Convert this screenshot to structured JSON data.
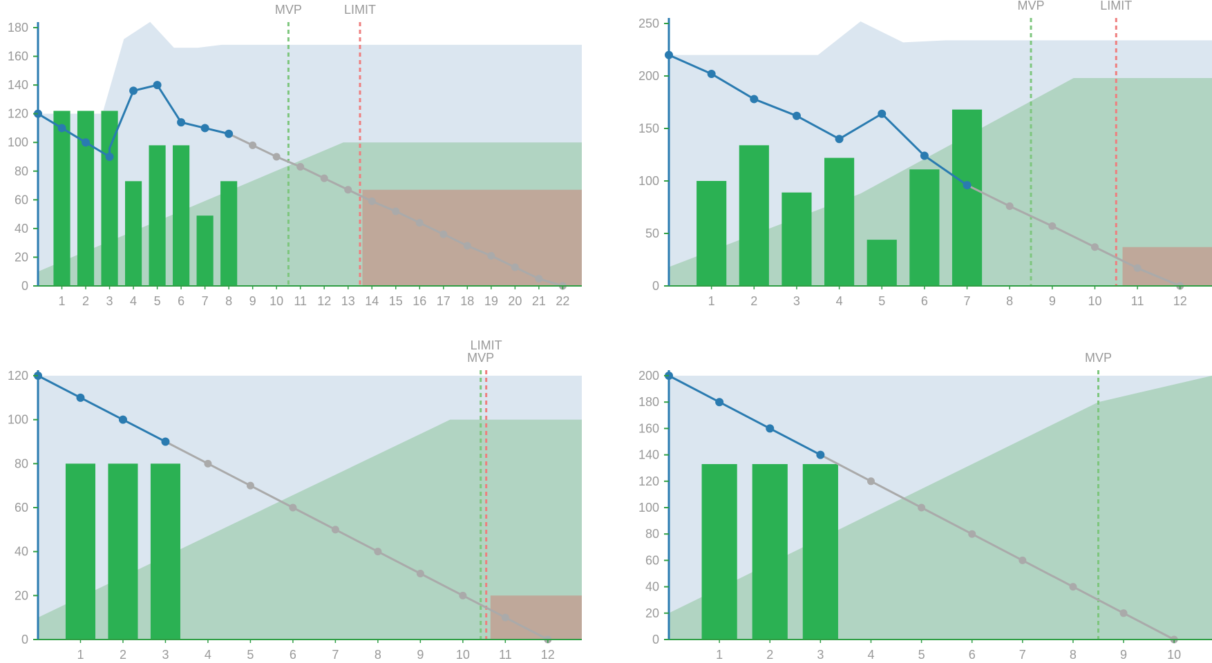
{
  "colors": {
    "scope": "#dbe6f0",
    "done_area": "#b1d4c2",
    "over_limit": "#bfa89a",
    "bars": "#2bb153",
    "actual_line": "#2a7bb0",
    "projection": "#aaaaaa",
    "mvp": "#7ec67e",
    "limit": "#ee7f7f",
    "axis_x": "#2f9e44",
    "axis_y": "#2a7bb0"
  },
  "chart_data": [
    {
      "type": "bar",
      "ylim": [
        0,
        180
      ],
      "yticks": [
        0,
        20,
        40,
        60,
        80,
        100,
        120,
        140,
        160,
        180
      ],
      "xlim": [
        0,
        22.8
      ],
      "xticks": [
        1,
        2,
        3,
        4,
        5,
        6,
        7,
        8,
        9,
        10,
        11,
        12,
        13,
        14,
        15,
        16,
        17,
        18,
        19,
        20,
        21,
        22
      ],
      "bars": [
        {
          "x": 1,
          "value": 122
        },
        {
          "x": 2,
          "value": 122
        },
        {
          "x": 3,
          "value": 122
        },
        {
          "x": 4,
          "value": 73
        },
        {
          "x": 5,
          "value": 98
        },
        {
          "x": 6,
          "value": 98
        },
        {
          "x": 7,
          "value": 49
        },
        {
          "x": 8,
          "value": 73
        }
      ],
      "bar_width": 0.7,
      "actual": [
        [
          0,
          120
        ],
        [
          1,
          110
        ],
        [
          2,
          100
        ],
        [
          3,
          90
        ],
        [
          3,
          96
        ],
        [
          4,
          136
        ],
        [
          5,
          140
        ],
        [
          6,
          114
        ],
        [
          7,
          110
        ],
        [
          8,
          106
        ]
      ],
      "actual_points": [
        [
          0,
          120
        ],
        [
          1,
          110
        ],
        [
          2,
          100
        ],
        [
          3,
          90
        ],
        [
          4,
          136
        ],
        [
          5,
          140
        ],
        [
          6,
          114
        ],
        [
          7,
          110
        ],
        [
          8,
          106
        ]
      ],
      "projection": [
        [
          8,
          106
        ],
        [
          9,
          98
        ],
        [
          10,
          90
        ],
        [
          11,
          83
        ],
        [
          12,
          75
        ],
        [
          13,
          67
        ],
        [
          14,
          59
        ],
        [
          15,
          52
        ],
        [
          16,
          44
        ],
        [
          17,
          36
        ],
        [
          18,
          28
        ],
        [
          19,
          21
        ],
        [
          20,
          13
        ],
        [
          21,
          5
        ],
        [
          22,
          0
        ]
      ],
      "scope_area": [
        [
          0,
          120
        ],
        [
          2.7,
          120
        ],
        [
          3.6,
          172
        ],
        [
          4.7,
          184
        ],
        [
          5.7,
          166
        ],
        [
          6.7,
          166
        ],
        [
          7.7,
          168
        ],
        [
          22.8,
          168
        ]
      ],
      "done_area": [
        [
          0,
          10
        ],
        [
          12.8,
          100
        ],
        [
          22.8,
          100
        ]
      ],
      "limit_region": {
        "x_start": 13.6,
        "x_end": 22.8,
        "y": 67
      },
      "markers": [
        {
          "label": "MVP",
          "x": 10.5,
          "kind": "mvp",
          "label_row": 0
        },
        {
          "label": "LIMIT",
          "x": 13.5,
          "kind": "limit",
          "label_row": 0
        }
      ]
    },
    {
      "type": "bar",
      "ylim": [
        0,
        250
      ],
      "yticks": [
        0,
        50,
        100,
        150,
        200,
        250
      ],
      "xlim": [
        0,
        12.75
      ],
      "xticks": [
        1,
        2,
        3,
        4,
        5,
        6,
        7,
        8,
        9,
        10,
        11,
        12
      ],
      "bars": [
        {
          "x": 1,
          "value": 100
        },
        {
          "x": 2,
          "value": 134
        },
        {
          "x": 3,
          "value": 89
        },
        {
          "x": 4,
          "value": 122
        },
        {
          "x": 5,
          "value": 44
        },
        {
          "x": 6,
          "value": 111
        },
        {
          "x": 7,
          "value": 168
        }
      ],
      "bar_width": 0.7,
      "actual": [
        [
          0,
          220
        ],
        [
          1,
          202
        ],
        [
          2,
          178
        ],
        [
          3,
          162
        ],
        [
          4,
          140
        ],
        [
          5,
          164
        ],
        [
          6,
          124
        ],
        [
          7,
          96
        ]
      ],
      "actual_points": [
        [
          0,
          220
        ],
        [
          1,
          202
        ],
        [
          2,
          178
        ],
        [
          3,
          162
        ],
        [
          4,
          140
        ],
        [
          5,
          164
        ],
        [
          6,
          124
        ],
        [
          7,
          96
        ]
      ],
      "projection": [
        [
          7,
          96
        ],
        [
          8,
          76
        ],
        [
          9,
          57
        ],
        [
          10,
          37
        ],
        [
          11,
          17
        ],
        [
          12,
          0
        ]
      ],
      "scope_area": [
        [
          0,
          220
        ],
        [
          3.5,
          220
        ],
        [
          4.5,
          252
        ],
        [
          5.5,
          232
        ],
        [
          6.5,
          234
        ],
        [
          12.75,
          234
        ]
      ],
      "done_area": [
        [
          0,
          18
        ],
        [
          4.5,
          88
        ],
        [
          9.5,
          198
        ],
        [
          12.75,
          198
        ]
      ],
      "limit_region": {
        "x_start": 10.65,
        "x_end": 12.75,
        "y": 37
      },
      "markers": [
        {
          "label": "MVP",
          "x": 8.5,
          "kind": "mvp",
          "label_row": 0
        },
        {
          "label": "LIMIT",
          "x": 10.5,
          "kind": "limit",
          "label_row": 0
        }
      ]
    },
    {
      "type": "bar",
      "ylim": [
        0,
        120
      ],
      "yticks": [
        0,
        20,
        40,
        60,
        80,
        100,
        120
      ],
      "xlim": [
        0,
        12.8
      ],
      "xticks": [
        1,
        2,
        3,
        4,
        5,
        6,
        7,
        8,
        9,
        10,
        11,
        12
      ],
      "bars": [
        {
          "x": 1,
          "value": 80
        },
        {
          "x": 2,
          "value": 80
        },
        {
          "x": 3,
          "value": 80
        }
      ],
      "bar_width": 0.7,
      "actual": [
        [
          0,
          120
        ],
        [
          1,
          110
        ],
        [
          2,
          100
        ],
        [
          3,
          90
        ]
      ],
      "actual_points": [
        [
          0,
          120
        ],
        [
          1,
          110
        ],
        [
          2,
          100
        ],
        [
          3,
          90
        ]
      ],
      "projection": [
        [
          3,
          90
        ],
        [
          4,
          80
        ],
        [
          5,
          70
        ],
        [
          6,
          60
        ],
        [
          7,
          50
        ],
        [
          8,
          40
        ],
        [
          9,
          30
        ],
        [
          10,
          20
        ],
        [
          11,
          10
        ],
        [
          12,
          0
        ]
      ],
      "scope_area": [
        [
          0,
          120
        ],
        [
          12.8,
          120
        ]
      ],
      "done_area": [
        [
          0,
          10
        ],
        [
          9.7,
          100
        ],
        [
          12.8,
          100
        ]
      ],
      "limit_region": {
        "x_start": 10.65,
        "x_end": 12.8,
        "y": 20
      },
      "markers": [
        {
          "label": "MVP",
          "x": 10.42,
          "kind": "mvp",
          "label_row": 0
        },
        {
          "label": "LIMIT",
          "x": 10.55,
          "kind": "limit",
          "label_row": 1
        }
      ]
    },
    {
      "type": "bar",
      "ylim": [
        0,
        200
      ],
      "yticks": [
        0,
        20,
        40,
        60,
        80,
        100,
        120,
        140,
        160,
        180,
        200
      ],
      "xlim": [
        0,
        10.75
      ],
      "xticks": [
        1,
        2,
        3,
        4,
        5,
        6,
        7,
        8,
        9,
        10
      ],
      "bars": [
        {
          "x": 1,
          "value": 133
        },
        {
          "x": 2,
          "value": 133
        },
        {
          "x": 3,
          "value": 133
        }
      ],
      "bar_width": 0.7,
      "actual": [
        [
          0,
          200
        ],
        [
          1,
          180
        ],
        [
          2,
          160
        ],
        [
          3,
          140
        ]
      ],
      "actual_points": [
        [
          0,
          200
        ],
        [
          1,
          180
        ],
        [
          2,
          160
        ],
        [
          3,
          140
        ]
      ],
      "projection": [
        [
          3,
          140
        ],
        [
          4,
          120
        ],
        [
          5,
          100
        ],
        [
          6,
          80
        ],
        [
          7,
          60
        ],
        [
          8,
          40
        ],
        [
          9,
          20
        ],
        [
          10,
          0
        ]
      ],
      "scope_area": [
        [
          0,
          200
        ],
        [
          10.75,
          200
        ]
      ],
      "done_area": [
        [
          0,
          20
        ],
        [
          8.5,
          180
        ],
        [
          10.75,
          200
        ]
      ],
      "limit_region": null,
      "markers": [
        {
          "label": "MVP",
          "x": 8.5,
          "kind": "mvp",
          "label_row": 0
        }
      ]
    }
  ]
}
